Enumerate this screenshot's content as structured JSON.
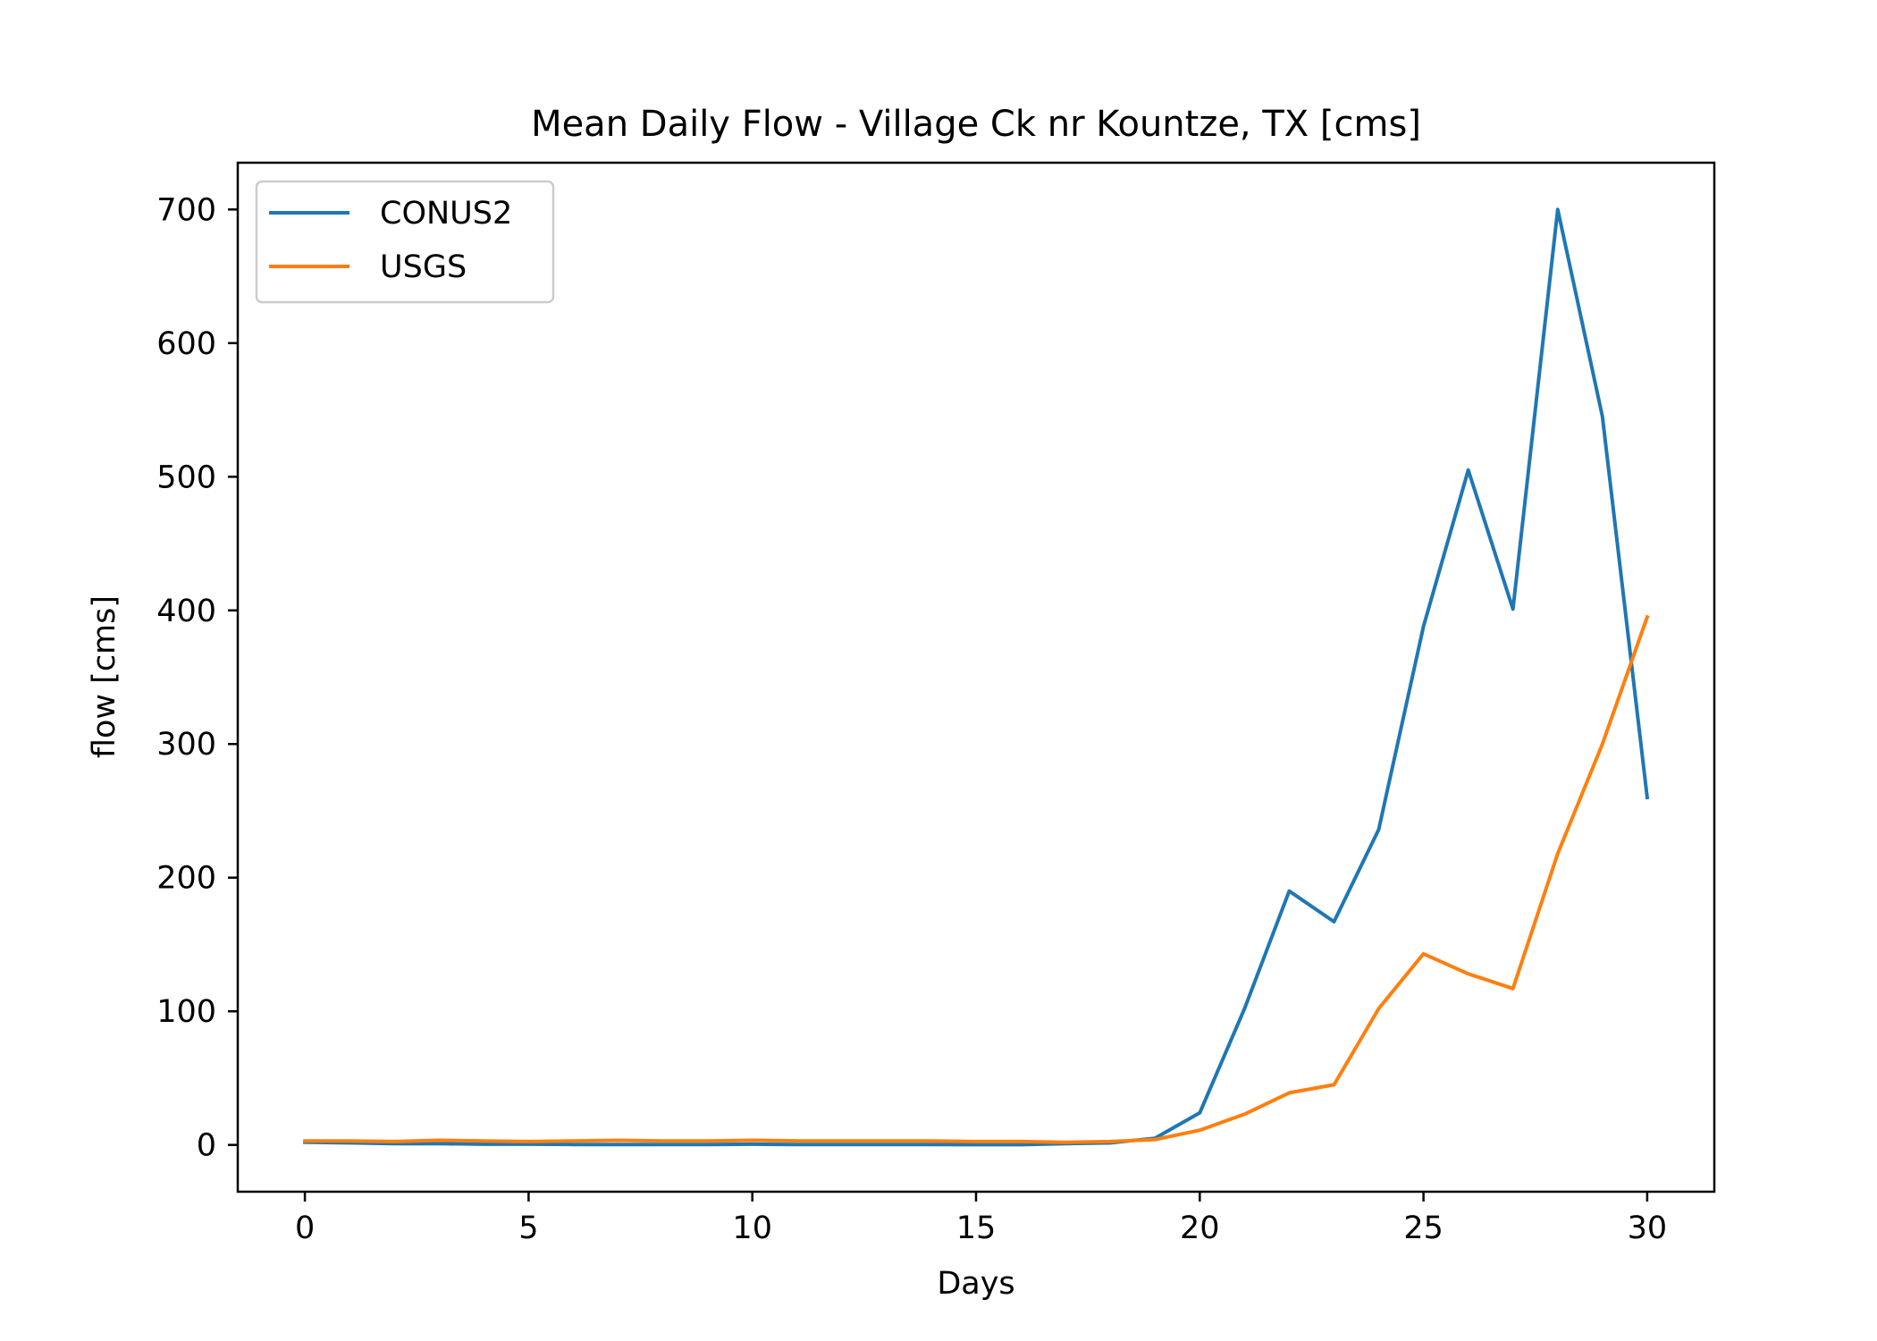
{
  "chart_data": {
    "type": "line",
    "title": "Mean Daily Flow - Village Ck nr Kountze, TX [cms]",
    "xlabel": "Days",
    "ylabel": "flow [cms]",
    "xlim": [
      -1.5,
      31.5
    ],
    "ylim": [
      -35,
      735
    ],
    "xticks": [
      0,
      5,
      10,
      15,
      20,
      25,
      30
    ],
    "yticks": [
      0,
      100,
      200,
      300,
      400,
      500,
      600,
      700
    ],
    "grid": false,
    "legend_position": "upper-left",
    "x": [
      0,
      1,
      2,
      3,
      4,
      5,
      6,
      7,
      8,
      9,
      10,
      11,
      12,
      13,
      14,
      15,
      16,
      17,
      18,
      19,
      20,
      21,
      22,
      23,
      24,
      25,
      26,
      27,
      28,
      29,
      30
    ],
    "series": [
      {
        "name": "CONUS2",
        "color": "#1f77b4",
        "values": [
          2,
          1.5,
          1,
          1,
          0.5,
          0.5,
          0.3,
          0.3,
          0.3,
          0.3,
          0.5,
          0.3,
          0.3,
          0.3,
          0.3,
          0.2,
          0.2,
          1,
          1.5,
          5,
          24,
          102,
          190,
          167,
          236,
          388,
          505,
          401,
          700,
          545,
          260
        ]
      },
      {
        "name": "USGS",
        "color": "#ff7f0e",
        "values": [
          3,
          3,
          2.5,
          3.5,
          3,
          2.5,
          3,
          3.5,
          3,
          3,
          3.5,
          3,
          3,
          3,
          3,
          2.5,
          2.5,
          2,
          2.5,
          4,
          11,
          23,
          39,
          45,
          102,
          143,
          128,
          117,
          218,
          300,
          395
        ]
      }
    ]
  }
}
